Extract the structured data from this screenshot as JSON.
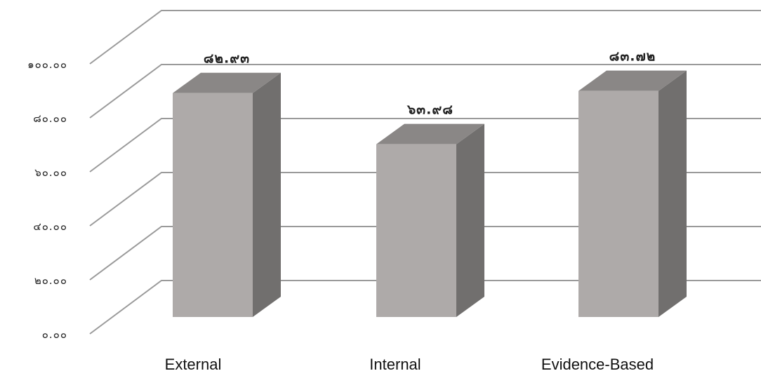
{
  "chart_data": {
    "type": "bar",
    "style": "3d-column",
    "categories": [
      "External",
      "Internal",
      "Evidence-Based"
    ],
    "values": [
      82.93,
      63.98,
      83.72
    ],
    "data_labels": [
      "๘๒.๙๓",
      "๖๓.๙๘",
      "๘๓.๗๒"
    ],
    "ylim": [
      0,
      100
    ],
    "yticks": [
      0,
      20,
      40,
      60,
      80,
      100
    ],
    "ytick_labels": [
      "๐.๐๐",
      "๒๐.๐๐",
      "๔๐.๐๐",
      "๖๐.๐๐",
      "๘๐.๐๐",
      "๑๐๐.๐๐"
    ],
    "grid": true,
    "legend": "none",
    "colors": {
      "bar_front": "#aeaaa9",
      "bar_top": "#8a8786",
      "bar_side": "#716f6e",
      "grid": "#9a9a9a"
    }
  }
}
